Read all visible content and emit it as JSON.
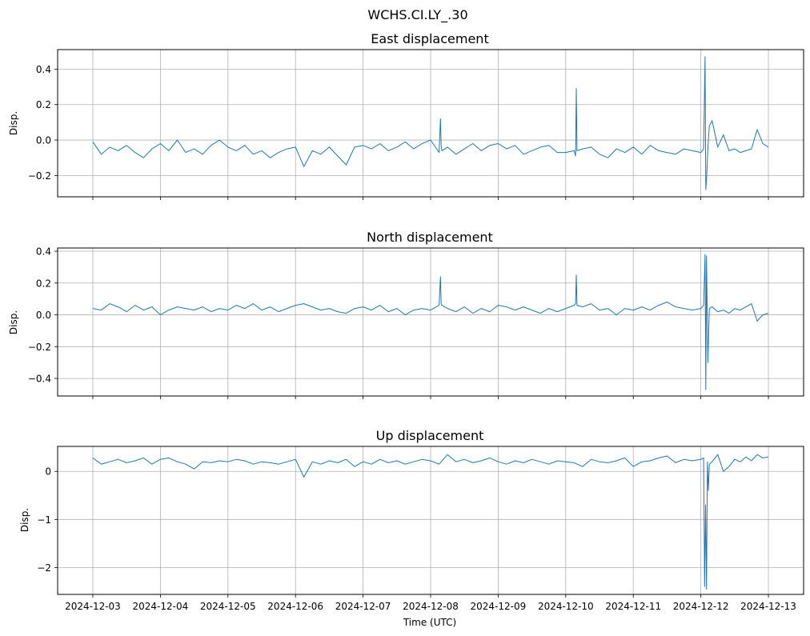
{
  "figure": {
    "suptitle": "WCHS.CI.LY_.30",
    "xlabel": "Time (UTC)"
  },
  "colors": {
    "series": "#1f77b4",
    "grid": "#b0b0b0",
    "axes": "#000000"
  },
  "chart_data": [
    {
      "type": "line",
      "title": "East displacement",
      "xlabel": "",
      "ylabel": "Disp.",
      "x_ticks": [
        "2024-12-03",
        "2024-12-04",
        "2024-12-05",
        "2024-12-06",
        "2024-12-07",
        "2024-12-08",
        "2024-12-09",
        "2024-12-10",
        "2024-12-11",
        "2024-12-12",
        "2024-12-13"
      ],
      "xlim": [
        "2024-12-02 11:30",
        "2024-12-13 12:30"
      ],
      "ylim": [
        -0.32,
        0.51
      ],
      "y_ticks": [
        -0.2,
        0.0,
        0.2,
        0.4
      ],
      "y_tick_labels": [
        "−0.2",
        "0.0",
        "0.2",
        "0.4"
      ],
      "grid": true,
      "series": [
        {
          "x": [
            "2024-12-03 00:00",
            "2024-12-03 03:00",
            "2024-12-03 06:00",
            "2024-12-03 09:00",
            "2024-12-03 12:00",
            "2024-12-03 15:00",
            "2024-12-03 18:00",
            "2024-12-03 21:00",
            "2024-12-04 00:00",
            "2024-12-04 03:00",
            "2024-12-04 06:00",
            "2024-12-04 09:00",
            "2024-12-04 12:00",
            "2024-12-04 15:00",
            "2024-12-04 18:00",
            "2024-12-04 21:00",
            "2024-12-05 00:00",
            "2024-12-05 03:00",
            "2024-12-05 06:00",
            "2024-12-05 09:00",
            "2024-12-05 12:00",
            "2024-12-05 15:00",
            "2024-12-05 18:00",
            "2024-12-05 21:00",
            "2024-12-06 00:00",
            "2024-12-06 03:00",
            "2024-12-06 06:00",
            "2024-12-06 09:00",
            "2024-12-06 12:00",
            "2024-12-06 15:00",
            "2024-12-06 18:00",
            "2024-12-06 21:00",
            "2024-12-07 00:00",
            "2024-12-07 03:00",
            "2024-12-07 06:00",
            "2024-12-07 09:00",
            "2024-12-07 12:00",
            "2024-12-07 15:00",
            "2024-12-07 18:00",
            "2024-12-07 21:00",
            "2024-12-08 00:00",
            "2024-12-08 03:00",
            "2024-12-08 03:30",
            "2024-12-08 03:45",
            "2024-12-08 04:00",
            "2024-12-08 06:00",
            "2024-12-08 09:00",
            "2024-12-08 12:00",
            "2024-12-08 15:00",
            "2024-12-08 18:00",
            "2024-12-08 21:00",
            "2024-12-09 00:00",
            "2024-12-09 03:00",
            "2024-12-09 06:00",
            "2024-12-09 09:00",
            "2024-12-09 12:00",
            "2024-12-09 15:00",
            "2024-12-09 18:00",
            "2024-12-09 21:00",
            "2024-12-10 00:00",
            "2024-12-10 03:00",
            "2024-12-10 03:30",
            "2024-12-10 03:45",
            "2024-12-10 04:00",
            "2024-12-10 06:00",
            "2024-12-10 09:00",
            "2024-12-10 12:00",
            "2024-12-10 15:00",
            "2024-12-10 18:00",
            "2024-12-10 21:00",
            "2024-12-11 00:00",
            "2024-12-11 03:00",
            "2024-12-11 06:00",
            "2024-12-11 09:00",
            "2024-12-11 12:00",
            "2024-12-11 15:00",
            "2024-12-11 18:00",
            "2024-12-11 21:00",
            "2024-12-12 00:00",
            "2024-12-12 01:00",
            "2024-12-12 01:30",
            "2024-12-12 01:45",
            "2024-12-12 02:00",
            "2024-12-12 02:30",
            "2024-12-12 03:00",
            "2024-12-12 04:00",
            "2024-12-12 06:00",
            "2024-12-12 08:00",
            "2024-12-12 10:00",
            "2024-12-12 12:00",
            "2024-12-12 14:00",
            "2024-12-12 16:00",
            "2024-12-12 18:00",
            "2024-12-12 20:00",
            "2024-12-12 22:00",
            "2024-12-13 00:00"
          ],
          "y": [
            -0.01,
            -0.08,
            -0.04,
            -0.06,
            -0.03,
            -0.07,
            -0.1,
            -0.05,
            -0.02,
            -0.06,
            0.0,
            -0.07,
            -0.05,
            -0.08,
            -0.03,
            0.0,
            -0.04,
            -0.06,
            -0.03,
            -0.08,
            -0.06,
            -0.1,
            -0.07,
            -0.05,
            -0.04,
            -0.15,
            -0.06,
            -0.08,
            -0.04,
            -0.09,
            -0.14,
            -0.04,
            -0.03,
            -0.05,
            -0.02,
            -0.06,
            -0.04,
            -0.01,
            -0.05,
            -0.02,
            0.0,
            -0.07,
            0.12,
            -0.03,
            -0.06,
            -0.04,
            -0.08,
            -0.05,
            -0.02,
            -0.06,
            -0.03,
            -0.02,
            -0.05,
            -0.03,
            -0.08,
            -0.06,
            -0.04,
            -0.03,
            -0.07,
            -0.07,
            -0.06,
            -0.09,
            0.29,
            -0.06,
            -0.05,
            -0.04,
            -0.08,
            -0.1,
            -0.05,
            -0.07,
            -0.04,
            -0.08,
            -0.03,
            -0.06,
            -0.07,
            -0.08,
            -0.05,
            -0.06,
            -0.07,
            -0.05,
            0.47,
            -0.28,
            -0.22,
            -0.05,
            0.08,
            0.11,
            -0.04,
            0.03,
            -0.06,
            -0.05,
            -0.07,
            -0.06,
            -0.05,
            0.06,
            -0.02,
            -0.04
          ]
        }
      ]
    },
    {
      "type": "line",
      "title": "North displacement",
      "xlabel": "",
      "ylabel": "Disp.",
      "x_ticks": [
        "2024-12-03",
        "2024-12-04",
        "2024-12-05",
        "2024-12-06",
        "2024-12-07",
        "2024-12-08",
        "2024-12-09",
        "2024-12-10",
        "2024-12-11",
        "2024-12-12",
        "2024-12-13"
      ],
      "xlim": [
        "2024-12-02 11:30",
        "2024-12-13 12:30"
      ],
      "ylim": [
        -0.51,
        0.42
      ],
      "y_ticks": [
        -0.4,
        -0.2,
        0.0,
        0.2,
        0.4
      ],
      "y_tick_labels": [
        "−0.4",
        "−0.2",
        "0.0",
        "0.2",
        "0.4"
      ],
      "grid": true,
      "series": [
        {
          "x": [
            "2024-12-03 00:00",
            "2024-12-03 03:00",
            "2024-12-03 06:00",
            "2024-12-03 09:00",
            "2024-12-03 12:00",
            "2024-12-03 15:00",
            "2024-12-03 18:00",
            "2024-12-03 21:00",
            "2024-12-04 00:00",
            "2024-12-04 03:00",
            "2024-12-04 06:00",
            "2024-12-04 09:00",
            "2024-12-04 12:00",
            "2024-12-04 15:00",
            "2024-12-04 18:00",
            "2024-12-04 21:00",
            "2024-12-05 00:00",
            "2024-12-05 03:00",
            "2024-12-05 06:00",
            "2024-12-05 09:00",
            "2024-12-05 12:00",
            "2024-12-05 15:00",
            "2024-12-05 18:00",
            "2024-12-05 21:00",
            "2024-12-06 00:00",
            "2024-12-06 03:00",
            "2024-12-06 06:00",
            "2024-12-06 09:00",
            "2024-12-06 12:00",
            "2024-12-06 15:00",
            "2024-12-06 18:00",
            "2024-12-06 21:00",
            "2024-12-07 00:00",
            "2024-12-07 03:00",
            "2024-12-07 06:00",
            "2024-12-07 09:00",
            "2024-12-07 12:00",
            "2024-12-07 15:00",
            "2024-12-07 18:00",
            "2024-12-07 21:00",
            "2024-12-08 00:00",
            "2024-12-08 03:00",
            "2024-12-08 03:30",
            "2024-12-08 03:45",
            "2024-12-08 04:00",
            "2024-12-08 06:00",
            "2024-12-08 09:00",
            "2024-12-08 12:00",
            "2024-12-08 15:00",
            "2024-12-08 18:00",
            "2024-12-08 21:00",
            "2024-12-09 00:00",
            "2024-12-09 03:00",
            "2024-12-09 06:00",
            "2024-12-09 09:00",
            "2024-12-09 12:00",
            "2024-12-09 15:00",
            "2024-12-09 18:00",
            "2024-12-09 21:00",
            "2024-12-10 00:00",
            "2024-12-10 03:00",
            "2024-12-10 03:30",
            "2024-12-10 03:45",
            "2024-12-10 04:00",
            "2024-12-10 06:00",
            "2024-12-10 09:00",
            "2024-12-10 12:00",
            "2024-12-10 15:00",
            "2024-12-10 18:00",
            "2024-12-10 21:00",
            "2024-12-11 00:00",
            "2024-12-11 03:00",
            "2024-12-11 06:00",
            "2024-12-11 09:00",
            "2024-12-11 12:00",
            "2024-12-11 15:00",
            "2024-12-11 18:00",
            "2024-12-11 21:00",
            "2024-12-12 00:00",
            "2024-12-12 01:00",
            "2024-12-12 01:30",
            "2024-12-12 01:45",
            "2024-12-12 02:00",
            "2024-12-12 02:30",
            "2024-12-12 03:00",
            "2024-12-12 04:00",
            "2024-12-12 06:00",
            "2024-12-12 08:00",
            "2024-12-12 10:00",
            "2024-12-12 12:00",
            "2024-12-12 14:00",
            "2024-12-12 16:00",
            "2024-12-12 18:00",
            "2024-12-12 20:00",
            "2024-12-12 22:00",
            "2024-12-13 00:00"
          ],
          "y": [
            0.04,
            0.03,
            0.07,
            0.05,
            0.02,
            0.06,
            0.03,
            0.05,
            0.0,
            0.03,
            0.05,
            0.04,
            0.03,
            0.05,
            0.02,
            0.04,
            0.03,
            0.06,
            0.04,
            0.07,
            0.03,
            0.05,
            0.02,
            0.04,
            0.06,
            0.07,
            0.05,
            0.03,
            0.04,
            0.02,
            0.01,
            0.04,
            0.05,
            0.03,
            0.06,
            0.02,
            0.04,
            0.0,
            0.03,
            0.04,
            0.03,
            0.06,
            0.24,
            0.07,
            0.06,
            0.04,
            0.02,
            0.05,
            0.01,
            0.04,
            0.02,
            0.06,
            0.05,
            0.03,
            0.05,
            0.03,
            0.01,
            0.04,
            0.02,
            0.04,
            0.06,
            0.07,
            0.25,
            0.06,
            0.05,
            0.07,
            0.03,
            0.04,
            0.0,
            0.04,
            0.03,
            0.05,
            0.03,
            0.06,
            0.08,
            0.05,
            0.04,
            0.03,
            0.04,
            0.06,
            0.38,
            -0.47,
            0.37,
            -0.3,
            0.04,
            0.05,
            0.02,
            0.03,
            0.01,
            0.04,
            0.03,
            0.05,
            0.07,
            -0.04,
            0.0,
            0.01
          ]
        }
      ]
    },
    {
      "type": "line",
      "title": "Up displacement",
      "xlabel": "Time (UTC)",
      "ylabel": "Disp.",
      "x_ticks": [
        "2024-12-03",
        "2024-12-04",
        "2024-12-05",
        "2024-12-06",
        "2024-12-07",
        "2024-12-08",
        "2024-12-09",
        "2024-12-10",
        "2024-12-11",
        "2024-12-12",
        "2024-12-13"
      ],
      "xlim": [
        "2024-12-02 11:30",
        "2024-12-13 12:30"
      ],
      "ylim": [
        -2.56,
        0.52
      ],
      "y_ticks": [
        -2,
        -1,
        0
      ],
      "y_tick_labels": [
        "−2",
        "−1",
        "0"
      ],
      "grid": true,
      "series": [
        {
          "x": [
            "2024-12-03 00:00",
            "2024-12-03 03:00",
            "2024-12-03 06:00",
            "2024-12-03 09:00",
            "2024-12-03 12:00",
            "2024-12-03 15:00",
            "2024-12-03 18:00",
            "2024-12-03 21:00",
            "2024-12-04 00:00",
            "2024-12-04 03:00",
            "2024-12-04 06:00",
            "2024-12-04 09:00",
            "2024-12-04 12:00",
            "2024-12-04 15:00",
            "2024-12-04 18:00",
            "2024-12-04 21:00",
            "2024-12-05 00:00",
            "2024-12-05 03:00",
            "2024-12-05 06:00",
            "2024-12-05 09:00",
            "2024-12-05 12:00",
            "2024-12-05 15:00",
            "2024-12-05 18:00",
            "2024-12-05 21:00",
            "2024-12-06 00:00",
            "2024-12-06 03:00",
            "2024-12-06 06:00",
            "2024-12-06 09:00",
            "2024-12-06 12:00",
            "2024-12-06 15:00",
            "2024-12-06 18:00",
            "2024-12-06 21:00",
            "2024-12-07 00:00",
            "2024-12-07 03:00",
            "2024-12-07 06:00",
            "2024-12-07 09:00",
            "2024-12-07 12:00",
            "2024-12-07 15:00",
            "2024-12-07 18:00",
            "2024-12-07 21:00",
            "2024-12-08 00:00",
            "2024-12-08 03:00",
            "2024-12-08 06:00",
            "2024-12-08 09:00",
            "2024-12-08 12:00",
            "2024-12-08 15:00",
            "2024-12-08 18:00",
            "2024-12-08 21:00",
            "2024-12-09 00:00",
            "2024-12-09 03:00",
            "2024-12-09 06:00",
            "2024-12-09 09:00",
            "2024-12-09 12:00",
            "2024-12-09 15:00",
            "2024-12-09 18:00",
            "2024-12-09 21:00",
            "2024-12-10 00:00",
            "2024-12-10 03:00",
            "2024-12-10 06:00",
            "2024-12-10 09:00",
            "2024-12-10 12:00",
            "2024-12-10 15:00",
            "2024-12-10 18:00",
            "2024-12-10 21:00",
            "2024-12-11 00:00",
            "2024-12-11 03:00",
            "2024-12-11 06:00",
            "2024-12-11 09:00",
            "2024-12-11 12:00",
            "2024-12-11 15:00",
            "2024-12-11 18:00",
            "2024-12-11 21:00",
            "2024-12-12 00:00",
            "2024-12-12 01:00",
            "2024-12-12 01:20",
            "2024-12-12 01:40",
            "2024-12-12 02:00",
            "2024-12-12 02:20",
            "2024-12-12 02:40",
            "2024-12-12 03:00",
            "2024-12-12 04:00",
            "2024-12-12 06:00",
            "2024-12-12 08:00",
            "2024-12-12 10:00",
            "2024-12-12 12:00",
            "2024-12-12 14:00",
            "2024-12-12 16:00",
            "2024-12-12 18:00",
            "2024-12-12 20:00",
            "2024-12-12 22:00",
            "2024-12-13 00:00"
          ],
          "y": [
            0.28,
            0.15,
            0.2,
            0.25,
            0.18,
            0.22,
            0.28,
            0.15,
            0.25,
            0.28,
            0.2,
            0.15,
            0.05,
            0.2,
            0.18,
            0.22,
            0.2,
            0.25,
            0.22,
            0.15,
            0.2,
            0.18,
            0.15,
            0.2,
            0.25,
            -0.12,
            0.2,
            0.15,
            0.22,
            0.18,
            0.25,
            0.1,
            0.2,
            0.15,
            0.25,
            0.18,
            0.22,
            0.15,
            0.2,
            0.25,
            0.22,
            0.15,
            0.35,
            0.2,
            0.25,
            0.18,
            0.22,
            0.28,
            0.2,
            0.15,
            0.22,
            0.18,
            0.25,
            0.2,
            0.15,
            0.22,
            0.2,
            0.18,
            0.1,
            0.25,
            0.2,
            0.18,
            0.22,
            0.28,
            0.1,
            0.2,
            0.22,
            0.28,
            0.32,
            0.18,
            0.25,
            0.22,
            0.25,
            0.28,
            -2.4,
            -0.7,
            -2.45,
            0.2,
            -0.4,
            0.15,
            0.2,
            0.35,
            0.0,
            0.1,
            0.25,
            0.2,
            0.3,
            0.22,
            0.35,
            0.28,
            0.3
          ]
        }
      ]
    }
  ]
}
